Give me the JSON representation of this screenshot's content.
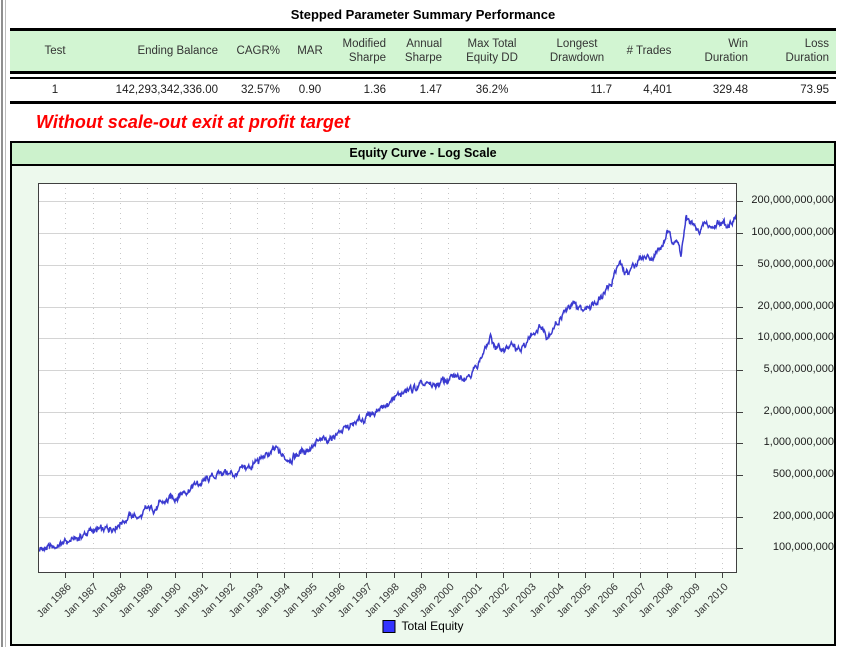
{
  "page": {
    "title": "Stepped Parameter Summary Performance",
    "annotation": "Without scale-out exit at profit target"
  },
  "colors": {
    "table_header_bg": "#d2f5d2",
    "chart_title_bg": "#ccf2cc",
    "chart_bg": "#edf9ed",
    "annotation_text": "#ff0000",
    "equity_line": "#3a3ad0",
    "legend_swatch": "#3333ff"
  },
  "summary_table": {
    "columns": [
      "Test",
      "Ending Balance",
      "CAGR%",
      "MAR",
      "Modified Sharpe",
      "Annual Sharpe",
      "Max Total Equity DD",
      "Longest Drawdown",
      "# Trades",
      "Win Duration",
      "Loss Duration"
    ],
    "rows": [
      [
        "1",
        "142,293,342,336.00",
        "32.57%",
        "0.90",
        "1.36",
        "1.47",
        "36.2%",
        "11.7",
        "4,401",
        "329.48",
        "73.95"
      ]
    ]
  },
  "chart_data": {
    "type": "line",
    "title": "Equity Curve - Log Scale",
    "xlabel": "",
    "ylabel": "",
    "log_scale": true,
    "grid": true,
    "legend_position": "bottom-center",
    "xlim": [
      1985.0,
      2010.55
    ],
    "ylim": [
      58000000,
      300000000000
    ],
    "y_ticks": [
      {
        "value": 200000000000,
        "label": "200,000,000,000"
      },
      {
        "value": 100000000000,
        "label": "100,000,000,000"
      },
      {
        "value": 50000000000,
        "label": "50,000,000,000"
      },
      {
        "value": 20000000000,
        "label": "20,000,000,000"
      },
      {
        "value": 10000000000,
        "label": "10,000,000,000"
      },
      {
        "value": 5000000000,
        "label": "5,000,000,000"
      },
      {
        "value": 2000000000,
        "label": "2,000,000,000"
      },
      {
        "value": 1000000000,
        "label": "1,000,000,000"
      },
      {
        "value": 500000000,
        "label": "500,000,000"
      },
      {
        "value": 200000000,
        "label": "200,000,000"
      },
      {
        "value": 100000000,
        "label": "100,000,000"
      }
    ],
    "x_ticks": [
      {
        "year": 1986,
        "label": "Jan 1986"
      },
      {
        "year": 1987,
        "label": "Jan 1987"
      },
      {
        "year": 1988,
        "label": "Jan 1988"
      },
      {
        "year": 1989,
        "label": "Jan 1989"
      },
      {
        "year": 1990,
        "label": "Jan 1990"
      },
      {
        "year": 1991,
        "label": "Jan 1991"
      },
      {
        "year": 1992,
        "label": "Jan 1992"
      },
      {
        "year": 1993,
        "label": "Jan 1993"
      },
      {
        "year": 1994,
        "label": "Jan 1994"
      },
      {
        "year": 1995,
        "label": "Jan 1995"
      },
      {
        "year": 1996,
        "label": "Jan 1996"
      },
      {
        "year": 1997,
        "label": "Jan 1997"
      },
      {
        "year": 1998,
        "label": "Jan 1998"
      },
      {
        "year": 1999,
        "label": "Jan 1999"
      },
      {
        "year": 2000,
        "label": "Jan 2000"
      },
      {
        "year": 2001,
        "label": "Jan 2001"
      },
      {
        "year": 2002,
        "label": "Jan 2002"
      },
      {
        "year": 2003,
        "label": "Jan 2003"
      },
      {
        "year": 2004,
        "label": "Jan 2004"
      },
      {
        "year": 2005,
        "label": "Jan 2005"
      },
      {
        "year": 2006,
        "label": "Jan 2006"
      },
      {
        "year": 2007,
        "label": "Jan 2007"
      },
      {
        "year": 2008,
        "label": "Jan 2008"
      },
      {
        "year": 2009,
        "label": "Jan 2009"
      },
      {
        "year": 2010,
        "label": "Jan 2010"
      }
    ],
    "series": [
      {
        "name": "Total Equity",
        "color": "#3a3ad0",
        "swatch_color": "#3333ff",
        "points": [
          [
            1985.0,
            95000000
          ],
          [
            1985.6,
            103000000
          ],
          [
            1986.0,
            112000000
          ],
          [
            1986.5,
            127000000
          ],
          [
            1987.0,
            148000000
          ],
          [
            1987.4,
            143000000
          ],
          [
            1988.0,
            178000000
          ],
          [
            1988.4,
            205000000
          ],
          [
            1988.75,
            198000000
          ],
          [
            1989.0,
            228000000
          ],
          [
            1989.5,
            260000000
          ],
          [
            1990.0,
            310000000
          ],
          [
            1990.6,
            385000000
          ],
          [
            1991.1,
            430000000
          ],
          [
            1991.8,
            540000000
          ],
          [
            1992.15,
            495000000
          ],
          [
            1992.6,
            560000000
          ],
          [
            1993.0,
            660000000
          ],
          [
            1993.7,
            850000000
          ],
          [
            1994.05,
            710000000
          ],
          [
            1994.5,
            780000000
          ],
          [
            1995.0,
            940000000
          ],
          [
            1995.5,
            1050000000
          ],
          [
            1996.0,
            1280000000
          ],
          [
            1996.5,
            1450000000
          ],
          [
            1997.0,
            1780000000
          ],
          [
            1997.5,
            2150000000
          ],
          [
            1998.0,
            2650000000
          ],
          [
            1998.5,
            3100000000
          ],
          [
            1999.0,
            3450000000
          ],
          [
            1999.45,
            3500000000
          ],
          [
            2000.0,
            4000000000
          ],
          [
            2000.6,
            4450000000
          ],
          [
            2001.0,
            5200000000
          ],
          [
            2001.55,
            10000000000
          ],
          [
            2001.8,
            7800000000
          ],
          [
            2002.3,
            8300000000
          ],
          [
            2002.65,
            7400000000
          ],
          [
            2003.1,
            11500000000
          ],
          [
            2003.35,
            13200000000
          ],
          [
            2003.6,
            10800000000
          ],
          [
            2004.0,
            14500000000
          ],
          [
            2004.5,
            20500000000
          ],
          [
            2004.9,
            18000000000
          ],
          [
            2005.4,
            23500000000
          ],
          [
            2005.95,
            33000000000
          ],
          [
            2006.1,
            44000000000
          ],
          [
            2006.25,
            52000000000
          ],
          [
            2006.45,
            40000000000
          ],
          [
            2007.0,
            57000000000
          ],
          [
            2007.5,
            62000000000
          ],
          [
            2007.8,
            72000000000
          ],
          [
            2008.0,
            100000000000
          ],
          [
            2008.15,
            85000000000
          ],
          [
            2008.3,
            93000000000
          ],
          [
            2008.5,
            64000000000
          ],
          [
            2008.7,
            135000000000
          ],
          [
            2008.9,
            125000000000
          ],
          [
            2009.1,
            102000000000
          ],
          [
            2009.4,
            120000000000
          ],
          [
            2009.65,
            112000000000
          ],
          [
            2009.9,
            130000000000
          ],
          [
            2010.15,
            118000000000
          ],
          [
            2010.35,
            133000000000
          ],
          [
            2010.55,
            142293342336
          ]
        ]
      }
    ]
  }
}
